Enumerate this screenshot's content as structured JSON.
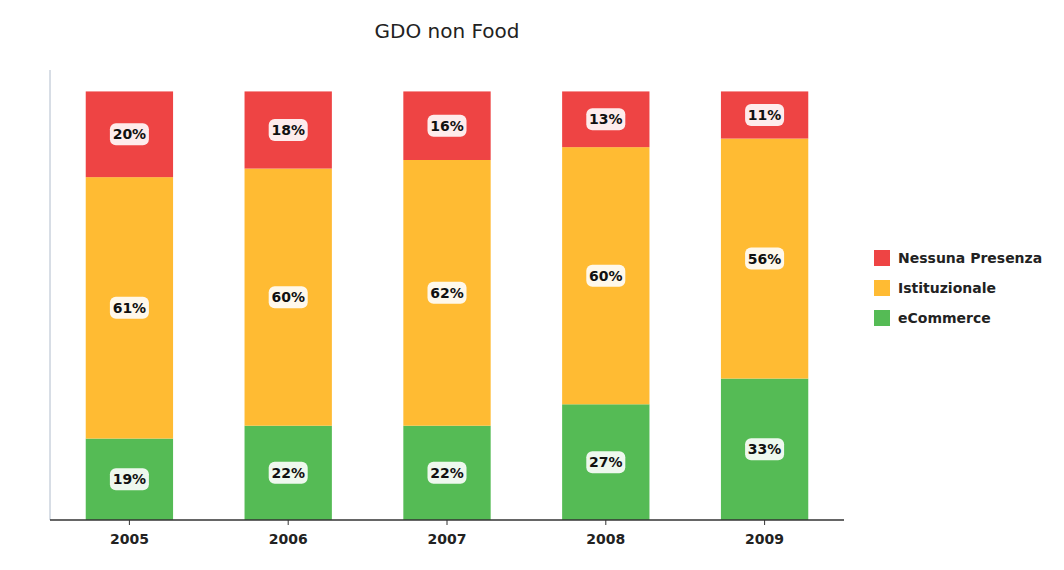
{
  "chart_data": {
    "type": "bar",
    "title": "GDO non Food",
    "categories": [
      "2005",
      "2006",
      "2007",
      "2008",
      "2009"
    ],
    "series": [
      {
        "name": "eCommerce",
        "color": "#55BB55",
        "values": [
          19,
          22,
          22,
          27,
          33
        ],
        "value_labels": [
          "19%",
          "22%",
          "22%",
          "27%",
          "33%"
        ]
      },
      {
        "name": "Istituzionale",
        "color": "#FFBB33",
        "values": [
          61,
          60,
          62,
          60,
          56
        ],
        "value_labels": [
          "61%",
          "60%",
          "62%",
          "60%",
          "56%"
        ]
      },
      {
        "name": "Nessuna Presenza",
        "color": "#EE4444",
        "values": [
          20,
          18,
          16,
          13,
          11
        ],
        "value_labels": [
          "20%",
          "18%",
          "16%",
          "13%",
          "11%"
        ]
      }
    ],
    "stacked": true,
    "data_labels": true,
    "ylim": [
      0,
      105
    ],
    "tick_labels": "x",
    "grid": false,
    "legend": "right"
  }
}
